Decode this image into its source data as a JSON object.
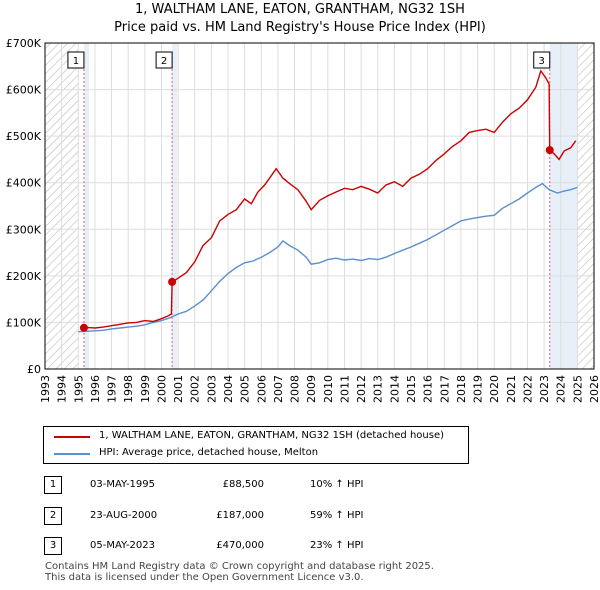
{
  "title_line1": "1, WALTHAM LANE, EATON, GRANTHAM, NG32 1SH",
  "title_line2": "Price paid vs. HM Land Registry's House Price Index (HPI)",
  "colors": {
    "property": "#cc0000",
    "hpi": "#5a8fd0",
    "hatch": "#bbbbbb",
    "band": "#dde8f6",
    "marker_line": "#e06070",
    "grid": "#dddddd"
  },
  "chart_data": {
    "type": "line",
    "title": "1, WALTHAM LANE, EATON, GRANTHAM, NG32 1SH",
    "subtitle": "Price paid vs. HM Land Registry's House Price Index (HPI)",
    "xlim": [
      1993,
      2026
    ],
    "ylim": [
      0,
      700000
    ],
    "x_ticks": [
      "1993",
      "1994",
      "1995",
      "1996",
      "1997",
      "1998",
      "1999",
      "2000",
      "2001",
      "2002",
      "2003",
      "2004",
      "2005",
      "2006",
      "2007",
      "2008",
      "2009",
      "2010",
      "2011",
      "2012",
      "2013",
      "2014",
      "2015",
      "2016",
      "2017",
      "2018",
      "2019",
      "2020",
      "2021",
      "2022",
      "2023",
      "2024",
      "2025",
      "2026"
    ],
    "y_ticks": [
      {
        "value": 0,
        "label": "£0"
      },
      {
        "value": 100000,
        "label": "£100K"
      },
      {
        "value": 200000,
        "label": "£200K"
      },
      {
        "value": 300000,
        "label": "£300K"
      },
      {
        "value": 400000,
        "label": "£400K"
      },
      {
        "value": 500000,
        "label": "£500K"
      },
      {
        "value": 600000,
        "label": "£600K"
      },
      {
        "value": 700000,
        "label": "£700K"
      }
    ],
    "hatch_before": 1995.0,
    "hatch_after": 2025.0,
    "series": [
      {
        "name": "1, WALTHAM LANE, EATON, GRANTHAM, NG32 1SH (detached house)",
        "color": "#cc0000",
        "points": [
          [
            1995.34,
            88500
          ],
          [
            1995.6,
            89000
          ],
          [
            1996.0,
            88000
          ],
          [
            1996.5,
            90000
          ],
          [
            1997.0,
            93000
          ],
          [
            1997.5,
            96000
          ],
          [
            1998.0,
            99000
          ],
          [
            1998.5,
            100000
          ],
          [
            1999.0,
            104000
          ],
          [
            1999.5,
            102000
          ],
          [
            2000.0,
            108000
          ],
          [
            2000.4,
            114000
          ],
          [
            2000.6,
            118000
          ],
          [
            2000.64,
            187000
          ],
          [
            2001.0,
            195000
          ],
          [
            2001.5,
            207000
          ],
          [
            2002.0,
            230000
          ],
          [
            2002.5,
            265000
          ],
          [
            2003.0,
            282000
          ],
          [
            2003.5,
            318000
          ],
          [
            2004.0,
            332000
          ],
          [
            2004.5,
            342000
          ],
          [
            2005.0,
            365000
          ],
          [
            2005.4,
            355000
          ],
          [
            2005.8,
            380000
          ],
          [
            2006.2,
            395000
          ],
          [
            2006.6,
            415000
          ],
          [
            2006.9,
            430000
          ],
          [
            2007.3,
            410000
          ],
          [
            2007.7,
            398000
          ],
          [
            2008.2,
            385000
          ],
          [
            2008.7,
            360000
          ],
          [
            2009.0,
            342000
          ],
          [
            2009.5,
            362000
          ],
          [
            2010.0,
            372000
          ],
          [
            2010.5,
            380000
          ],
          [
            2011.0,
            388000
          ],
          [
            2011.5,
            385000
          ],
          [
            2012.0,
            392000
          ],
          [
            2012.5,
            386000
          ],
          [
            2013.0,
            378000
          ],
          [
            2013.5,
            395000
          ],
          [
            2014.0,
            402000
          ],
          [
            2014.5,
            392000
          ],
          [
            2015.0,
            410000
          ],
          [
            2015.5,
            418000
          ],
          [
            2016.0,
            430000
          ],
          [
            2016.5,
            448000
          ],
          [
            2017.0,
            462000
          ],
          [
            2017.5,
            478000
          ],
          [
            2018.0,
            490000
          ],
          [
            2018.5,
            508000
          ],
          [
            2019.0,
            512000
          ],
          [
            2019.5,
            515000
          ],
          [
            2020.0,
            508000
          ],
          [
            2020.5,
            530000
          ],
          [
            2021.0,
            548000
          ],
          [
            2021.5,
            560000
          ],
          [
            2022.0,
            578000
          ],
          [
            2022.5,
            605000
          ],
          [
            2022.8,
            640000
          ],
          [
            2023.1,
            625000
          ],
          [
            2023.3,
            612000
          ],
          [
            2023.34,
            470000
          ],
          [
            2023.6,
            462000
          ],
          [
            2023.9,
            450000
          ],
          [
            2024.2,
            468000
          ],
          [
            2024.6,
            475000
          ],
          [
            2024.9,
            490000
          ]
        ]
      },
      {
        "name": "HPI: Average price, detached house, Melton",
        "color": "#5a8fd0",
        "points": [
          [
            1995.0,
            80000
          ],
          [
            1995.5,
            81000
          ],
          [
            1996.0,
            82000
          ],
          [
            1996.5,
            83000
          ],
          [
            1997.0,
            86000
          ],
          [
            1997.5,
            88000
          ],
          [
            1998.0,
            90000
          ],
          [
            1998.5,
            92000
          ],
          [
            1999.0,
            95000
          ],
          [
            1999.5,
            100000
          ],
          [
            2000.0,
            104000
          ],
          [
            2000.5,
            110000
          ],
          [
            2001.0,
            118000
          ],
          [
            2001.5,
            124000
          ],
          [
            2002.0,
            135000
          ],
          [
            2002.5,
            148000
          ],
          [
            2003.0,
            168000
          ],
          [
            2003.5,
            188000
          ],
          [
            2004.0,
            205000
          ],
          [
            2004.5,
            218000
          ],
          [
            2005.0,
            228000
          ],
          [
            2005.5,
            232000
          ],
          [
            2006.0,
            240000
          ],
          [
            2006.5,
            250000
          ],
          [
            2007.0,
            262000
          ],
          [
            2007.3,
            275000
          ],
          [
            2007.7,
            265000
          ],
          [
            2008.2,
            255000
          ],
          [
            2008.7,
            240000
          ],
          [
            2009.0,
            225000
          ],
          [
            2009.5,
            228000
          ],
          [
            2010.0,
            235000
          ],
          [
            2010.5,
            238000
          ],
          [
            2011.0,
            234000
          ],
          [
            2011.5,
            236000
          ],
          [
            2012.0,
            233000
          ],
          [
            2012.5,
            237000
          ],
          [
            2013.0,
            235000
          ],
          [
            2013.5,
            240000
          ],
          [
            2014.0,
            248000
          ],
          [
            2014.5,
            255000
          ],
          [
            2015.0,
            262000
          ],
          [
            2015.5,
            270000
          ],
          [
            2016.0,
            278000
          ],
          [
            2016.5,
            288000
          ],
          [
            2017.0,
            298000
          ],
          [
            2017.5,
            308000
          ],
          [
            2018.0,
            318000
          ],
          [
            2018.5,
            322000
          ],
          [
            2019.0,
            325000
          ],
          [
            2019.5,
            328000
          ],
          [
            2020.0,
            330000
          ],
          [
            2020.5,
            345000
          ],
          [
            2021.0,
            355000
          ],
          [
            2021.5,
            365000
          ],
          [
            2022.0,
            378000
          ],
          [
            2022.5,
            390000
          ],
          [
            2022.9,
            398000
          ],
          [
            2023.3,
            385000
          ],
          [
            2023.8,
            378000
          ],
          [
            2024.2,
            382000
          ],
          [
            2024.6,
            385000
          ],
          [
            2025.0,
            390000
          ]
        ]
      }
    ],
    "sales": [
      {
        "num": "1",
        "date": "03-MAY-1995",
        "price": "£88,500",
        "hpi_change": "10% ↑ HPI",
        "x": 1995.34,
        "value": 88500
      },
      {
        "num": "2",
        "date": "23-AUG-2000",
        "price": "£187,000",
        "hpi_change": "59% ↑ HPI",
        "x": 2000.64,
        "value": 187000
      },
      {
        "num": "3",
        "date": "05-MAY-2023",
        "price": "£470,000",
        "hpi_change": "23% ↑ HPI",
        "x": 2023.34,
        "value": 470000
      }
    ]
  },
  "legend": {
    "property_label": "1, WALTHAM LANE, EATON, GRANTHAM, NG32 1SH (detached house)",
    "hpi_label": "HPI: Average price, detached house, Melton"
  },
  "footer": {
    "line1": "Contains HM Land Registry data © Crown copyright and database right 2025.",
    "line2": "This data is licensed under the Open Government Licence v3.0."
  }
}
